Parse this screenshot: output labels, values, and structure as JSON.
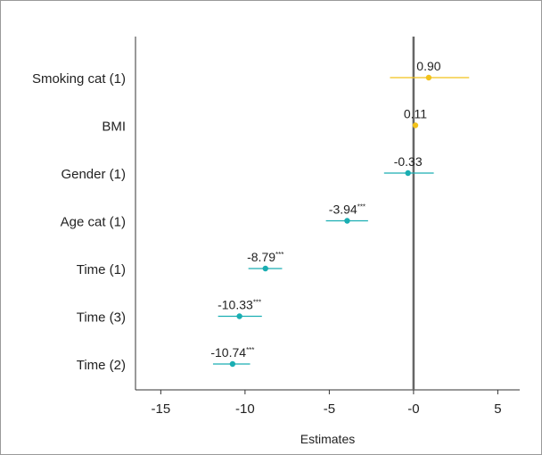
{
  "chart_data": {
    "type": "forest",
    "title": "",
    "xlabel": "Estimates",
    "ylabel": "",
    "xlim": [
      -16.5,
      6.3
    ],
    "xticks": [
      -15,
      -10,
      -5,
      0,
      5
    ],
    "xtick_labels": [
      "-15",
      "-10",
      "-5",
      "-0",
      "5"
    ],
    "reference_line": 0,
    "grid": false,
    "colors": {
      "positive": "#f2c21b",
      "negative": "#1aaeb2",
      "reference_line": "#666666",
      "axis": "#333333"
    },
    "rows": [
      {
        "label": "Smoking cat (1)",
        "estimate": 0.9,
        "ci": [
          -1.4,
          3.3
        ],
        "value_label": "0.90",
        "significance": ""
      },
      {
        "label": "BMI",
        "estimate": 0.11,
        "ci": [
          0.0,
          0.22
        ],
        "value_label": "0.11",
        "significance": ""
      },
      {
        "label": "Gender (1)",
        "estimate": -0.33,
        "ci": [
          -1.75,
          1.2
        ],
        "value_label": "-0.33",
        "significance": ""
      },
      {
        "label": "Age cat (1)",
        "estimate": -3.94,
        "ci": [
          -5.2,
          -2.7
        ],
        "value_label": "-3.94",
        "significance": "***"
      },
      {
        "label": "Time (1)",
        "estimate": -8.79,
        "ci": [
          -9.8,
          -7.8
        ],
        "value_label": "-8.79",
        "significance": "***"
      },
      {
        "label": "Time (3)",
        "estimate": -10.33,
        "ci": [
          -11.6,
          -9.0
        ],
        "value_label": "-10.33",
        "significance": "***"
      },
      {
        "label": "Time (2)",
        "estimate": -10.74,
        "ci": [
          -11.9,
          -9.7
        ],
        "value_label": "-10.74",
        "significance": "***"
      }
    ]
  }
}
